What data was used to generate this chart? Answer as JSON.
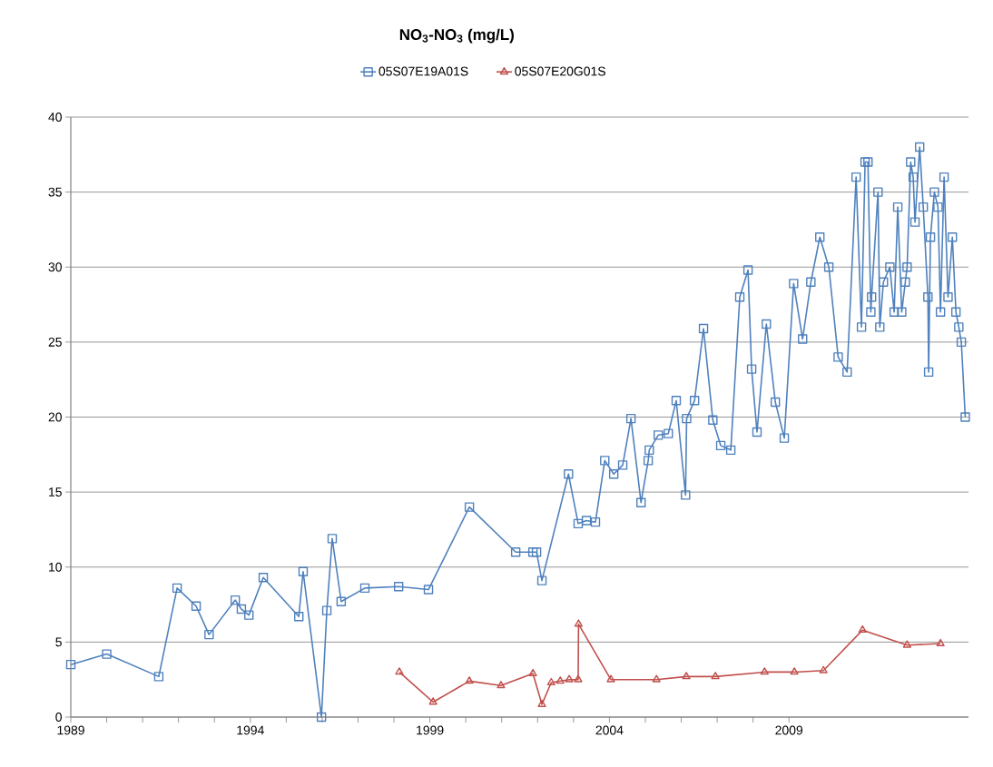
{
  "chart_data": {
    "type": "line",
    "title": "NO$_{3}$-NO$_{3}$ (mg/L)",
    "xlim": [
      1989,
      2014
    ],
    "xticks": [
      1989,
      1994,
      1999,
      2004,
      2009
    ],
    "ylim": [
      0,
      40
    ],
    "yticks": [
      0,
      5,
      10,
      15,
      20,
      25,
      30,
      35,
      40
    ],
    "grid": "y",
    "legend": "top",
    "series": [
      {
        "name": "05S07E19A01S",
        "color": "#4f81bd",
        "marker": "square",
        "x": [
          1989.0,
          1990.0,
          1991.45,
          1991.96,
          1992.49,
          1992.85,
          1993.58,
          1993.75,
          1993.96,
          1994.36,
          1995.35,
          1995.47,
          1995.98,
          1996.13,
          1996.28,
          1996.53,
          1997.19,
          1998.13,
          1998.96,
          2000.1,
          2001.39,
          2001.87,
          2001.97,
          2002.12,
          2002.86,
          2003.13,
          2003.36,
          2003.61,
          2003.87,
          2004.12,
          2004.37,
          2004.6,
          2004.88,
          2005.08,
          2005.11,
          2005.36,
          2005.64,
          2005.86,
          2006.12,
          2006.15,
          2006.37,
          2006.62,
          2006.88,
          2007.1,
          2007.38,
          2007.63,
          2007.86,
          2007.96,
          2008.11,
          2008.37,
          2008.62,
          2008.87,
          2009.13,
          2009.38,
          2009.61,
          2009.86,
          2010.11,
          2010.37,
          2010.62,
          2010.87,
          2011.02,
          2011.12,
          2011.2,
          2011.28,
          2011.3,
          2011.48,
          2011.53,
          2011.63,
          2011.81,
          2011.93,
          2012.03,
          2012.14,
          2012.24,
          2012.29,
          2012.39,
          2012.46,
          2012.51,
          2012.64,
          2012.74,
          2012.87,
          2012.89,
          2012.94,
          2013.05,
          2013.15,
          2013.22,
          2013.32,
          2013.43,
          2013.55,
          2013.65,
          2013.73,
          2013.8,
          2013.91
        ],
        "values": [
          3.5,
          4.2,
          2.7,
          8.6,
          7.4,
          5.5,
          7.8,
          7.2,
          6.8,
          9.3,
          6.7,
          9.7,
          0,
          7.1,
          11.9,
          7.7,
          8.6,
          8.7,
          8.5,
          14.0,
          11.0,
          11.0,
          11.0,
          9.1,
          16.2,
          12.9,
          13.1,
          13.0,
          17.1,
          16.2,
          16.8,
          19.9,
          14.3,
          17.1,
          17.8,
          18.8,
          18.9,
          21.1,
          14.8,
          19.9,
          21.1,
          25.9,
          19.8,
          18.1,
          17.8,
          28.0,
          29.8,
          23.2,
          19.0,
          26.2,
          21.0,
          18.6,
          28.9,
          25.2,
          29.0,
          32.0,
          30.0,
          24.0,
          23.0,
          36.0,
          26.0,
          37.0,
          37.0,
          27.0,
          28.0,
          35.0,
          26.0,
          29.0,
          30.0,
          27.0,
          34.0,
          27.0,
          29.0,
          30.0,
          37.0,
          36.0,
          33.0,
          38.0,
          34.0,
          28.0,
          23.0,
          32.0,
          35.0,
          34.0,
          27.0,
          36.0,
          28.0,
          32.0,
          27.0,
          26.0,
          25.0,
          20.0
        ]
      },
      {
        "name": "05S07E20G01S",
        "color": "#c0504d",
        "marker": "triangle",
        "x": [
          1998.15,
          1999.09,
          2000.1,
          2000.98,
          2001.87,
          2002.12,
          2002.38,
          2002.63,
          2002.88,
          2003.13,
          2003.14,
          2004.04,
          2005.31,
          2006.14,
          2006.95,
          2008.32,
          2009.15,
          2009.96,
          2011.05,
          2012.29,
          2013.22
        ],
        "values": [
          3.0,
          1.0,
          2.4,
          2.1,
          2.9,
          0.85,
          2.3,
          2.4,
          2.5,
          2.5,
          6.2,
          2.5,
          2.5,
          2.7,
          2.7,
          3.0,
          3.0,
          3.1,
          5.8,
          4.8,
          4.9
        ]
      }
    ]
  }
}
